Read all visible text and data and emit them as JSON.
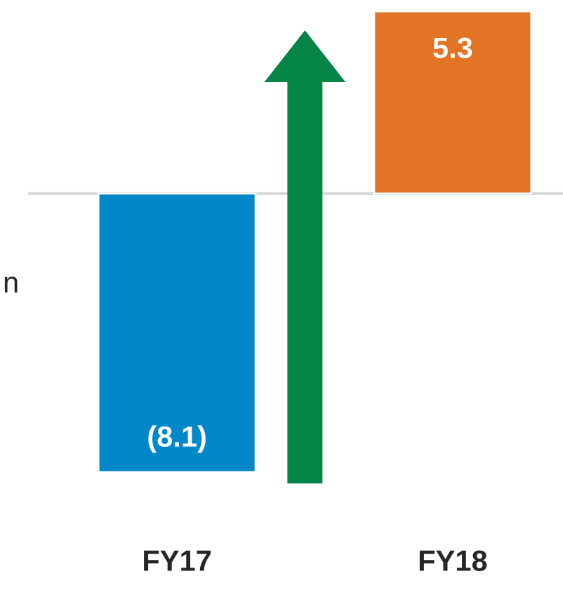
{
  "chart_data": {
    "type": "bar",
    "categories": [
      "FY17",
      "FY18"
    ],
    "values": [
      -8.1,
      5.3
    ],
    "colors": [
      "#0288c9",
      "#e37325"
    ],
    "value_labels": [
      "(8.1)",
      "5.3"
    ],
    "annotations": [
      "n"
    ],
    "grid": false,
    "legend": false
  }
}
